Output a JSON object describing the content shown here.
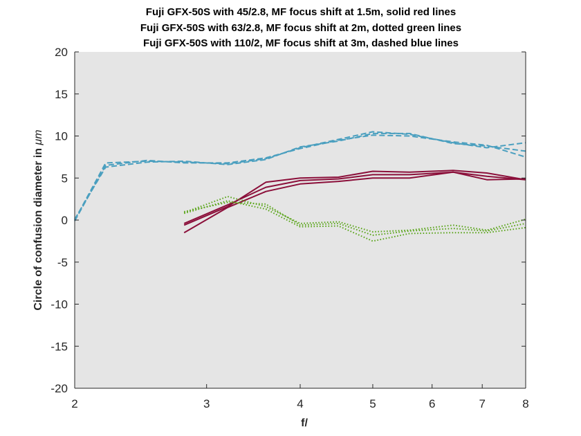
{
  "chart_data": {
    "type": "line",
    "title_lines": [
      "Fuji GFX-50S with 45/2.8, MF focus shift at 1.5m, solid red lines",
      "Fuji GFX-50S with 63/2.8, MF focus shift at 2m, dotted green lines",
      "Fuji GFX-50S with 110/2, MF focus shift at 3m, dashed blue lines"
    ],
    "xlabel": "f/",
    "ylabel_prefix": "Circle of confusion diameter in ",
    "ylabel_unit": "μm",
    "x_scale": "log",
    "xlim": [
      2,
      8
    ],
    "ylim": [
      -20,
      20
    ],
    "x_ticks": [
      2,
      3,
      4,
      5,
      6,
      7,
      8
    ],
    "y_ticks": [
      20,
      15,
      10,
      5,
      0,
      -5,
      -10,
      -15,
      -20
    ],
    "grid": false,
    "legend": "none",
    "colors": {
      "red": "#8b0f3a",
      "green": "#5aa51a",
      "blue": "#4a9fbf",
      "background": "#e5e5e5"
    },
    "series": [
      {
        "group": "45/2.8",
        "style": "solid",
        "color": "#8b0f3a",
        "x": [
          2.8,
          3.2,
          3.6,
          4.0,
          4.5,
          5.0,
          5.6,
          6.4,
          7.1,
          8.0
        ],
        "y": [
          -0.4,
          1.8,
          3.9,
          4.7,
          4.9,
          5.4,
          5.4,
          5.7,
          5.2,
          4.8
        ]
      },
      {
        "group": "45/2.8",
        "style": "solid",
        "color": "#8b0f3a",
        "x": [
          2.8,
          3.2,
          3.6,
          4.0,
          4.5,
          5.0,
          5.6,
          6.4,
          7.1,
          8.0
        ],
        "y": [
          -1.5,
          1.5,
          3.4,
          4.3,
          4.6,
          5.0,
          5.0,
          5.7,
          4.8,
          4.9
        ]
      },
      {
        "group": "45/2.8",
        "style": "solid",
        "color": "#8b0f3a",
        "x": [
          2.8,
          3.2,
          3.6,
          4.0,
          4.5,
          5.0,
          5.6,
          6.4,
          7.1,
          8.0
        ],
        "y": [
          -0.6,
          1.6,
          4.5,
          5.0,
          5.1,
          5.8,
          5.7,
          5.9,
          5.6,
          4.8
        ]
      },
      {
        "group": "63/2.8",
        "style": "dotted",
        "color": "#5aa51a",
        "x": [
          2.8,
          3.2,
          3.6,
          4.0,
          4.5,
          5.0,
          5.6,
          6.4,
          7.1,
          8.0
        ],
        "y": [
          0.9,
          2.8,
          1.6,
          -0.4,
          -0.2,
          -1.4,
          -1.2,
          -0.6,
          -1.2,
          0.1
        ]
      },
      {
        "group": "63/2.8",
        "style": "dotted",
        "color": "#5aa51a",
        "x": [
          2.8,
          3.2,
          3.6,
          4.0,
          4.5,
          5.0,
          5.6,
          6.4,
          7.1,
          8.0
        ],
        "y": [
          0.8,
          2.3,
          1.3,
          -0.8,
          -0.7,
          -2.5,
          -1.6,
          -1.5,
          -1.5,
          -0.9
        ]
      },
      {
        "group": "63/2.8",
        "style": "dotted",
        "color": "#5aa51a",
        "x": [
          2.8,
          3.2,
          3.6,
          4.0,
          4.5,
          5.0,
          5.6,
          6.4,
          7.1,
          8.0
        ],
        "y": [
          1.0,
          2.1,
          1.9,
          -0.6,
          -0.4,
          -1.8,
          -1.3,
          -1.0,
          -1.3,
          -0.4
        ]
      },
      {
        "group": "110/2",
        "style": "dashed",
        "color": "#4a9fbf",
        "x": [
          2.0,
          2.2,
          2.5,
          2.8,
          3.2,
          3.6,
          4.0,
          4.5,
          5.0,
          5.6,
          6.4,
          7.1,
          8.0
        ],
        "y": [
          0.0,
          6.8,
          7.0,
          6.9,
          6.7,
          7.3,
          8.6,
          9.6,
          10.5,
          10.2,
          9.2,
          8.6,
          9.2
        ]
      },
      {
        "group": "110/2",
        "style": "dashed",
        "color": "#4a9fbf",
        "x": [
          2.0,
          2.2,
          2.5,
          2.8,
          3.2,
          3.6,
          4.0,
          4.5,
          5.0,
          5.6,
          6.4,
          7.1,
          8.0
        ],
        "y": [
          -0.1,
          6.5,
          7.1,
          6.8,
          6.8,
          7.4,
          8.5,
          9.5,
          10.1,
          10.0,
          9.3,
          8.9,
          7.5
        ]
      },
      {
        "group": "110/2",
        "style": "dashed",
        "color": "#4a9fbf",
        "x": [
          2.0,
          2.2,
          2.5,
          2.8,
          3.2,
          3.6,
          4.0,
          4.5,
          5.0,
          5.6,
          6.4,
          7.1,
          8.0
        ],
        "y": [
          0.1,
          6.3,
          6.9,
          7.0,
          6.6,
          7.2,
          8.7,
          9.4,
          10.3,
          10.3,
          9.1,
          8.8,
          8.2
        ]
      }
    ]
  }
}
